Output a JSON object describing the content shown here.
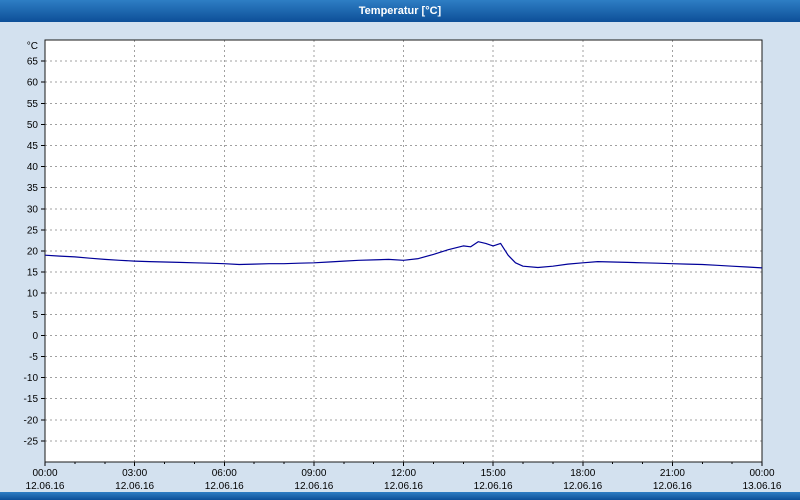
{
  "window": {
    "title": "Temperatur [°C]"
  },
  "colors": {
    "titlebar_hi": "#2e7ec4",
    "titlebar_bg": "#0d4f98",
    "titlebar_text": "#ffffff",
    "chart_bg": "#d3e1ef",
    "plot_bg": "#ffffff",
    "plot_border": "#1a1a1a",
    "grid": "#a0a0a0",
    "tick_text": "#000000",
    "line": "#000099"
  },
  "chart_data": {
    "type": "line",
    "title": "Temperatur [°C]",
    "xlabel": "",
    "ylabel": "°C",
    "ylim": [
      -30,
      70
    ],
    "ytick_min": -25,
    "ytick_max": 65,
    "ytick_step": 5,
    "xlim": [
      0,
      24
    ],
    "x_unit": "hours",
    "grid": true,
    "legend_position": "none",
    "xticks": [
      {
        "hour": 0,
        "time": "00:00",
        "date": "12.06.16"
      },
      {
        "hour": 3,
        "time": "03:00",
        "date": "12.06.16"
      },
      {
        "hour": 6,
        "time": "06:00",
        "date": "12.06.16"
      },
      {
        "hour": 9,
        "time": "09:00",
        "date": "12.06.16"
      },
      {
        "hour": 12,
        "time": "12:00",
        "date": "12.06.16"
      },
      {
        "hour": 15,
        "time": "15:00",
        "date": "12.06.16"
      },
      {
        "hour": 18,
        "time": "18:00",
        "date": "12.06.16"
      },
      {
        "hour": 21,
        "time": "21:00",
        "date": "12.06.16"
      },
      {
        "hour": 24,
        "time": "00:00",
        "date": "13.06.16"
      }
    ],
    "series": [
      {
        "name": "Temperatur",
        "color": "#000099",
        "x": [
          0,
          0.5,
          1,
          1.5,
          2,
          2.5,
          3,
          3.5,
          4,
          4.5,
          5,
          5.5,
          6,
          6.5,
          7,
          7.5,
          8,
          8.5,
          9,
          9.5,
          10,
          10.5,
          11,
          11.5,
          12,
          12.5,
          13,
          13.5,
          14,
          14.25,
          14.5,
          14.75,
          15,
          15.25,
          15.5,
          15.75,
          16,
          16.5,
          17,
          17.5,
          18,
          18.5,
          19,
          19.5,
          20,
          20.5,
          21,
          21.5,
          22,
          22.5,
          23,
          23.5,
          24
        ],
        "y": [
          19,
          18.8,
          18.6,
          18.3,
          18,
          17.8,
          17.6,
          17.5,
          17.4,
          17.3,
          17.2,
          17.1,
          17,
          16.8,
          16.9,
          17,
          17,
          17.1,
          17.2,
          17.4,
          17.6,
          17.8,
          17.9,
          18,
          17.8,
          18.2,
          19.2,
          20.3,
          21.2,
          21,
          22.2,
          21.8,
          21.2,
          21.8,
          19,
          17.2,
          16.4,
          16.1,
          16.4,
          16.9,
          17.2,
          17.5,
          17.4,
          17.3,
          17.2,
          17.1,
          17,
          16.9,
          16.8,
          16.6,
          16.4,
          16.2,
          16
        ]
      }
    ]
  }
}
